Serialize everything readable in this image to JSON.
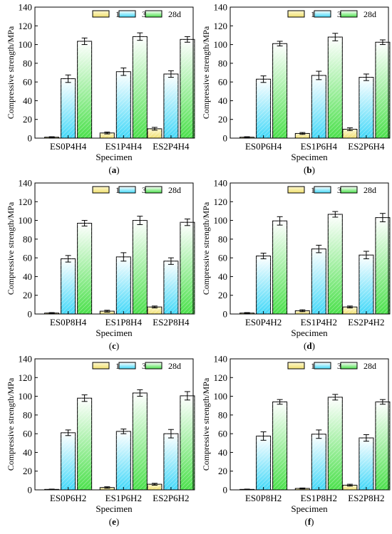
{
  "legend_labels": [
    "1d",
    "3d",
    "28d"
  ],
  "colors": {
    "1d_top": "#fdf7d0",
    "1d_bottom": "#f0e070",
    "3d_top": "#ffffff",
    "3d_bottom": "#44d8f8",
    "28d_top": "#ffffff",
    "28d_bottom": "#4ce04c"
  },
  "chart_data": [
    {
      "panel_label": "(a)",
      "type": "bar",
      "xlabel": "Specimen",
      "ylabel": "Compressive strength/MPa",
      "ylim": [
        0,
        140
      ],
      "yticks": [
        0,
        20,
        40,
        60,
        80,
        100,
        120,
        140
      ],
      "categories": [
        "ES0P4H4",
        "ES1P4H4",
        "ES2P4H4"
      ],
      "series": [
        {
          "name": "1d",
          "values": [
            1.0,
            5.5,
            10.0
          ],
          "errors": [
            0.5,
            1.0,
            1.5
          ]
        },
        {
          "name": "3d",
          "values": [
            63.5,
            71.0,
            68.5
          ],
          "errors": [
            4.0,
            4.0,
            3.5
          ]
        },
        {
          "name": "28d",
          "values": [
            103.5,
            108.5,
            105.5
          ],
          "errors": [
            3.5,
            4.0,
            3.0
          ]
        }
      ],
      "legend": "top-right"
    },
    {
      "panel_label": "(b)",
      "type": "bar",
      "xlabel": "Specimen",
      "ylabel": "Compressive strength/MPa",
      "ylim": [
        0,
        140
      ],
      "yticks": [
        0,
        20,
        40,
        60,
        80,
        100,
        120,
        140
      ],
      "categories": [
        "ES0P6H4",
        "ES1P6H4",
        "ES2P6H4"
      ],
      "series": [
        {
          "name": "1d",
          "values": [
            1.0,
            5.0,
            9.5
          ],
          "errors": [
            0.5,
            1.0,
            1.5
          ]
        },
        {
          "name": "3d",
          "values": [
            63.0,
            67.0,
            65.0
          ],
          "errors": [
            3.5,
            4.5,
            3.5
          ]
        },
        {
          "name": "28d",
          "values": [
            101.0,
            108.0,
            102.5
          ],
          "errors": [
            2.5,
            4.0,
            2.5
          ]
        }
      ],
      "legend": "top-right"
    },
    {
      "panel_label": "(c)",
      "type": "bar",
      "xlabel": "Specimen",
      "ylabel": "Compressive strength/MPa",
      "ylim": [
        0,
        140
      ],
      "yticks": [
        0,
        20,
        40,
        60,
        80,
        100,
        120,
        140
      ],
      "categories": [
        "ES0P8H4",
        "ES1P8H4",
        "ES2P8H4"
      ],
      "series": [
        {
          "name": "1d",
          "values": [
            1.0,
            3.0,
            7.5
          ],
          "errors": [
            0.5,
            1.0,
            1.0
          ]
        },
        {
          "name": "3d",
          "values": [
            59.0,
            61.0,
            56.5
          ],
          "errors": [
            3.5,
            4.5,
            3.5
          ]
        },
        {
          "name": "28d",
          "values": [
            97.0,
            100.0,
            98.0
          ],
          "errors": [
            3.0,
            4.5,
            3.5
          ]
        }
      ],
      "legend": "top-right"
    },
    {
      "panel_label": "(d)",
      "type": "bar",
      "xlabel": "Specimen",
      "ylabel": "Compressive strength/MPa",
      "ylim": [
        0,
        140
      ],
      "yticks": [
        0,
        20,
        40,
        60,
        80,
        100,
        120,
        140
      ],
      "categories": [
        "ES0P4H2",
        "ES1P4H2",
        "ES2P4H2"
      ],
      "series": [
        {
          "name": "1d",
          "values": [
            1.0,
            3.5,
            7.5
          ],
          "errors": [
            0.5,
            1.0,
            1.0
          ]
        },
        {
          "name": "3d",
          "values": [
            62.0,
            69.5,
            63.0
          ],
          "errors": [
            3.0,
            4.0,
            4.0
          ]
        },
        {
          "name": "28d",
          "values": [
            99.5,
            106.5,
            103.0
          ],
          "errors": [
            4.5,
            3.0,
            4.5
          ]
        }
      ],
      "legend": "top-right"
    },
    {
      "panel_label": "(e)",
      "type": "bar",
      "xlabel": "Specimen",
      "ylabel": "Compressive strength/MPa",
      "ylim": [
        0,
        140
      ],
      "yticks": [
        0,
        20,
        40,
        60,
        80,
        100,
        120,
        140
      ],
      "categories": [
        "ES0P6H2",
        "ES1P6H2",
        "ES2P6H2"
      ],
      "series": [
        {
          "name": "1d",
          "values": [
            0.5,
            2.5,
            6.0
          ],
          "errors": [
            0.3,
            0.8,
            1.0
          ]
        },
        {
          "name": "3d",
          "values": [
            61.0,
            62.5,
            60.0
          ],
          "errors": [
            3.0,
            2.5,
            4.5
          ]
        },
        {
          "name": "28d",
          "values": [
            98.0,
            103.5,
            100.5
          ],
          "errors": [
            3.5,
            3.5,
            4.5
          ]
        }
      ],
      "legend": "top-right"
    },
    {
      "panel_label": "(f)",
      "type": "bar",
      "xlabel": "Specimen",
      "ylabel": "Compressive strength/MPa",
      "ylim": [
        0,
        140
      ],
      "yticks": [
        0,
        20,
        40,
        60,
        80,
        100,
        120,
        140
      ],
      "categories": [
        "ES0P8H2",
        "ES1P8H2",
        "ES2P8H2"
      ],
      "series": [
        {
          "name": "1d",
          "values": [
            0.5,
            1.5,
            5.0
          ],
          "errors": [
            0.3,
            0.5,
            1.0
          ]
        },
        {
          "name": "3d",
          "values": [
            57.5,
            59.5,
            55.5
          ],
          "errors": [
            4.5,
            4.5,
            3.5
          ]
        },
        {
          "name": "28d",
          "values": [
            94.0,
            99.0,
            94.0
          ],
          "errors": [
            2.5,
            3.0,
            2.5
          ]
        }
      ],
      "legend": "top-right"
    }
  ]
}
